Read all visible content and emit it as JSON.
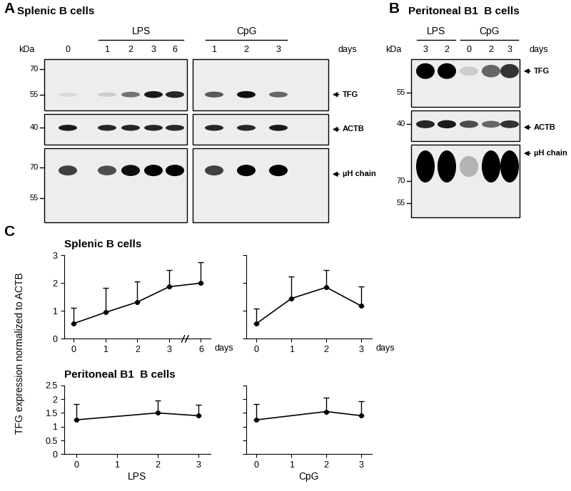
{
  "panels": [
    {
      "label": "A",
      "title": "Splenic B cells",
      "marker_unit": "kDa",
      "lane_unit": "days",
      "boxes": [
        {
          "lanes": [
            "0",
            "1",
            "2",
            "3",
            "6"
          ],
          "groups": [
            null,
            "LPS",
            "LPS",
            "LPS",
            "LPS"
          ]
        },
        {
          "lanes": [
            "1",
            "2",
            "3"
          ],
          "groups": [
            "CpG",
            "CpG",
            "CpG"
          ]
        }
      ],
      "rows": [
        {
          "name": "TFG",
          "markers": [
            70,
            55
          ],
          "intensity": [
            [
              0.15,
              0.2,
              0.55,
              0.9,
              0.85
            ],
            [
              0.65,
              0.95,
              0.6
            ]
          ]
        },
        {
          "name": "ACTB",
          "markers": [
            40
          ],
          "intensity": [
            [
              0.9,
              0.85,
              0.85,
              0.85,
              0.85
            ],
            [
              0.85,
              0.85,
              0.9
            ]
          ]
        },
        {
          "name": "µH chain",
          "markers": [
            70,
            55
          ],
          "intensity": [
            [
              0.75,
              0.7,
              0.95,
              1,
              1
            ],
            [
              0.75,
              1,
              1
            ]
          ]
        }
      ]
    },
    {
      "label": "B",
      "title": "Peritoneal B1  B cells",
      "marker_unit": "kDa",
      "lane_unit": "days",
      "boxes": [
        {
          "lanes": [
            "3",
            "2",
            "0",
            "2",
            "3"
          ],
          "groups": [
            "LPS",
            "LPS",
            "CpG",
            "CpG",
            "CpG"
          ]
        }
      ],
      "rows": [
        {
          "name": "TFG",
          "markers": [
            55
          ],
          "intensity": [
            [
              1,
              1,
              0.2,
              0.6,
              0.8
            ]
          ]
        },
        {
          "name": "ACTB",
          "markers": [
            40
          ],
          "intensity": [
            [
              0.85,
              0.9,
              0.7,
              0.6,
              0.8
            ]
          ]
        },
        {
          "name": "µH chain",
          "markers": [
            70,
            55
          ],
          "intensity": [
            [
              1,
              1,
              0.3,
              1,
              1
            ]
          ]
        }
      ]
    }
  ],
  "panel_c": {
    "label": "C",
    "ylabel": "TFG expression normalized to ACTB"
  },
  "chart_data": [
    {
      "type": "line",
      "title": "Splenic B cells",
      "categories": [
        "0",
        "1",
        "2",
        "3",
        "6"
      ],
      "values": [
        0.55,
        0.95,
        1.32,
        1.87,
        2.0
      ],
      "errors": [
        0.55,
        0.88,
        0.75,
        0.6,
        0.75
      ],
      "ylim": [
        0,
        3
      ],
      "yticks": [
        0,
        1,
        2,
        3
      ],
      "annotations": [
        "days"
      ],
      "color": "#000000",
      "marker": "o",
      "line_style": "solid"
    },
    {
      "type": "line",
      "x": [
        0,
        1,
        2,
        3
      ],
      "values": [
        0.55,
        1.45,
        1.85,
        1.18
      ],
      "errors": [
        0.53,
        0.78,
        0.62,
        0.7
      ],
      "xlim": [
        -0.3,
        3.3
      ],
      "xticks": [
        0,
        1,
        2,
        3
      ],
      "ylim": [
        0,
        3
      ],
      "yticks": [
        0,
        1,
        2,
        3
      ],
      "annotations": [
        "days"
      ],
      "tick_labels": "x",
      "color": "#000000",
      "marker": "o",
      "line_style": "solid"
    },
    {
      "type": "line",
      "title": "Peritoneal B1  B cells",
      "x": [
        0,
        2,
        3
      ],
      "values": [
        1.25,
        1.5,
        1.4
      ],
      "errors": [
        0.57,
        0.45,
        0.4
      ],
      "xlim": [
        -0.3,
        3.3
      ],
      "xticks": [
        0,
        1,
        2,
        3
      ],
      "ylim": [
        0,
        2.5
      ],
      "yticks": [
        0,
        0.5,
        1,
        1.5,
        2,
        2.5
      ],
      "xlabel": "LPS",
      "color": "#000000",
      "marker": "o",
      "line_style": "solid"
    },
    {
      "type": "line",
      "x": [
        0,
        2,
        3
      ],
      "values": [
        1.25,
        1.55,
        1.4
      ],
      "errors": [
        0.57,
        0.5,
        0.52
      ],
      "xlim": [
        -0.3,
        3.3
      ],
      "xticks": [
        0,
        1,
        2,
        3
      ],
      "ylim": [
        0,
        2.5
      ],
      "yticks": [
        0,
        0.5,
        1,
        1.5,
        2,
        2.5
      ],
      "xlabel": "CpG",
      "tick_labels": "x",
      "color": "#000000",
      "marker": "o",
      "line_style": "solid"
    }
  ]
}
